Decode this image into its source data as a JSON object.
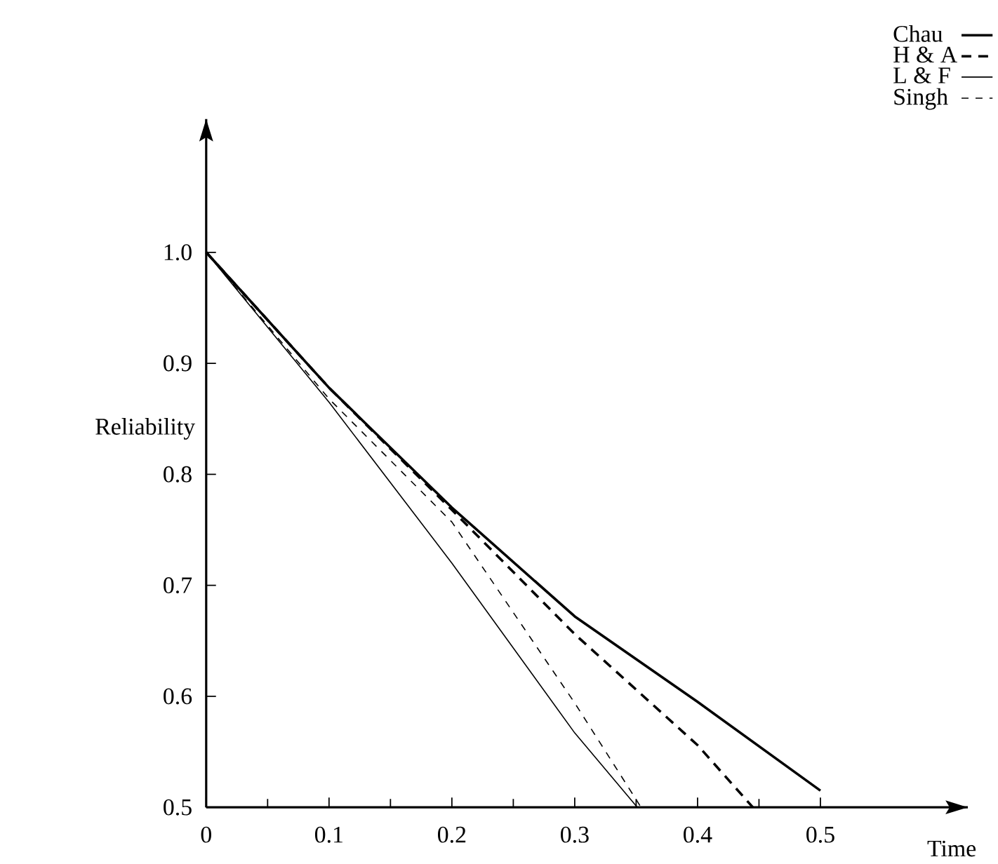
{
  "chart_data": {
    "type": "line",
    "xlabel": "Time",
    "ylabel": "Reliability",
    "xlim": [
      0,
      0.62
    ],
    "ylim": [
      0.5,
      1.12
    ],
    "xticks": [
      0,
      0.1,
      0.2,
      0.3,
      0.4,
      0.5
    ],
    "yticks": [
      0.5,
      0.6,
      0.7,
      0.8,
      0.9,
      {
        "value": 1.0,
        "label": "1.0"
      }
    ],
    "legend": "top right",
    "grid": false,
    "marker": "none",
    "series": [
      {
        "name": "Chau",
        "color": "#000000",
        "line_style": "solid",
        "x": [
          0,
          0.1,
          0.2,
          0.3,
          0.4,
          0.5
        ],
        "values": [
          1.0,
          0.878,
          0.77,
          0.672,
          0.595,
          0.515
        ]
      },
      {
        "name": "H & A",
        "color": "#000000",
        "line_style": "dashed",
        "x": [
          0,
          0.1,
          0.2,
          0.3,
          0.4,
          0.445
        ],
        "values": [
          1.0,
          0.878,
          0.768,
          0.656,
          0.556,
          0.5
        ]
      },
      {
        "name": "L & F",
        "color": "#000000",
        "line_style": "solid",
        "x": [
          0,
          0.1,
          0.2,
          0.3,
          0.351
        ],
        "values": [
          1.0,
          0.865,
          0.72,
          0.567,
          0.5
        ]
      },
      {
        "name": "Singh",
        "color": "#000000",
        "line_style": "dashed",
        "x": [
          0,
          0.1,
          0.2,
          0.3,
          0.354
        ],
        "values": [
          1.0,
          0.868,
          0.757,
          0.594,
          0.5
        ]
      }
    ]
  }
}
